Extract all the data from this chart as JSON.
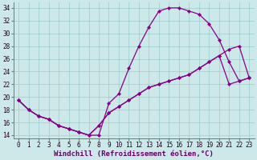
{
  "xlabel": "Windchill (Refroidissement éolien,°C)",
  "bg_color": "#cce8e8",
  "line_color": "#880088",
  "xlim_min": -0.5,
  "xlim_max": 23.5,
  "ylim_min": 13.5,
  "ylim_max": 34.8,
  "xticks": [
    0,
    1,
    2,
    3,
    4,
    5,
    6,
    7,
    8,
    9,
    10,
    11,
    12,
    13,
    14,
    15,
    16,
    17,
    18,
    19,
    20,
    21,
    22,
    23
  ],
  "yticks": [
    14,
    16,
    18,
    20,
    22,
    24,
    26,
    28,
    30,
    32,
    34
  ],
  "curve1_x": [
    0,
    1,
    2,
    3,
    4,
    5,
    6,
    7,
    8,
    9,
    10,
    11,
    12,
    13,
    14,
    15,
    16,
    17,
    18,
    19,
    20,
    21,
    22,
    23
  ],
  "curve1_y": [
    19.5,
    18.0,
    17.0,
    16.5,
    15.5,
    15.0,
    14.5,
    14.0,
    14.0,
    19.0,
    20.5,
    24.5,
    28.0,
    31.0,
    33.5,
    34.0,
    34.0,
    33.5,
    33.0,
    31.5,
    29.0,
    25.5,
    22.5,
    23.0
  ],
  "curve2_x": [
    0,
    1,
    2,
    3,
    4,
    5,
    6,
    7,
    8,
    9,
    10,
    11,
    12,
    13,
    14,
    15,
    16,
    17,
    18,
    19,
    20,
    21,
    22,
    23
  ],
  "curve2_y": [
    19.5,
    18.0,
    17.0,
    16.5,
    15.5,
    15.0,
    14.5,
    14.0,
    15.5,
    17.5,
    18.5,
    19.5,
    20.5,
    21.5,
    22.0,
    22.5,
    23.0,
    23.5,
    24.5,
    25.5,
    26.5,
    22.0,
    22.5,
    23.0
  ],
  "curve3_x": [
    0,
    1,
    2,
    3,
    4,
    5,
    6,
    7,
    8,
    9,
    10,
    11,
    12,
    13,
    14,
    15,
    16,
    17,
    18,
    19,
    20,
    21,
    22,
    23
  ],
  "curve3_y": [
    19.5,
    18.0,
    17.0,
    16.5,
    15.5,
    15.0,
    14.5,
    14.0,
    15.5,
    17.5,
    18.5,
    19.5,
    20.5,
    21.5,
    22.0,
    22.5,
    23.0,
    23.5,
    24.5,
    25.5,
    26.5,
    27.5,
    28.0,
    23.0
  ],
  "marker": "D",
  "markersize": 2.2,
  "linewidth": 0.9,
  "xlabel_fontsize": 6.5,
  "tick_fontsize": 5.5,
  "grid_color": "#99cccc",
  "spine_color": "#777777"
}
